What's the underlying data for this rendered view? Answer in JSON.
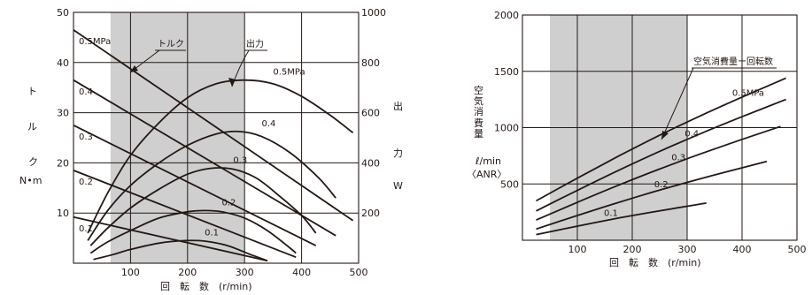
{
  "chart_data": [
    {
      "type": "line",
      "title": "",
      "xlabel": "回　転　数　(r/min)",
      "x_ticks": [
        100,
        200,
        300,
        400,
        500
      ],
      "xlim": [
        0,
        500
      ],
      "shaded_x_range": [
        65,
        300
      ],
      "left_axis": {
        "label_chars": [
          "ト",
          "ル",
          "ク"
        ],
        "unit": "N•m",
        "ylim": [
          0,
          50
        ],
        "ticks": [
          10,
          20,
          30,
          40,
          50
        ]
      },
      "right_axis": {
        "label_chars": [
          "出",
          "力"
        ],
        "unit": "W",
        "ylim": [
          0,
          1000
        ],
        "ticks": [
          200,
          400,
          600,
          800,
          1000
        ]
      },
      "torque_series": [
        {
          "name": "0.5MPa",
          "x": [
            0,
            490
          ],
          "y": [
            46.5,
            8.5
          ]
        },
        {
          "name": "0.4",
          "x": [
            0,
            460
          ],
          "y": [
            36.5,
            5.5
          ]
        },
        {
          "name": "0.3",
          "x": [
            0,
            425
          ],
          "y": [
            27.5,
            3.5
          ]
        },
        {
          "name": "0.2",
          "x": [
            0,
            390
          ],
          "y": [
            18.5,
            1.2
          ]
        },
        {
          "name": "0.1",
          "x": [
            0,
            340
          ],
          "y": [
            9.2,
            0.5
          ]
        }
      ],
      "output_series": [
        {
          "name": "0.5MPa",
          "x": [
            25,
            60,
            100,
            150,
            200,
            250,
            300,
            350,
            400,
            450,
            490
          ],
          "y": [
            120,
            280,
            430,
            560,
            660,
            715,
            730,
            715,
            665,
            590,
            520
          ]
        },
        {
          "name": "0.4",
          "x": [
            25,
            60,
            100,
            150,
            200,
            250,
            290,
            330,
            380,
            430,
            460
          ],
          "y": [
            90,
            210,
            310,
            400,
            470,
            515,
            525,
            505,
            440,
            340,
            260
          ]
        },
        {
          "name": "0.3",
          "x": [
            30,
            60,
            100,
            150,
            200,
            240,
            280,
            320,
            360,
            400,
            425
          ],
          "y": [
            70,
            140,
            220,
            295,
            355,
            378,
            375,
            340,
            270,
            190,
            120
          ]
        },
        {
          "name": "0.2",
          "x": [
            30,
            60,
            100,
            150,
            200,
            230,
            260,
            300,
            340,
            380,
            390
          ],
          "y": [
            40,
            85,
            130,
            180,
            205,
            210,
            205,
            180,
            130,
            60,
            40
          ]
        },
        {
          "name": "0.1",
          "x": [
            35,
            70,
            100,
            150,
            195,
            230,
            270,
            310,
            340
          ],
          "y": [
            15,
            35,
            55,
            80,
            90,
            88,
            70,
            35,
            10
          ]
        }
      ],
      "annotations": {
        "torque": "トルク",
        "output": "出力"
      }
    },
    {
      "type": "line",
      "title": "",
      "xlabel": "回　転　数　(r/min)",
      "x_ticks": [
        100,
        200,
        300,
        400,
        500
      ],
      "xlim": [
        0,
        500
      ],
      "shaded_x_range": [
        50,
        300
      ],
      "ylabel_chars": [
        "空",
        "気",
        "消",
        "費",
        "量"
      ],
      "y_unit_lines": [
        "ℓ/min",
        "〈ANR〉"
      ],
      "ylim": [
        0,
        2000
      ],
      "y_ticks": [
        500,
        1000,
        1500,
        2000
      ],
      "series": [
        {
          "name": "0.5MPa",
          "x": [
            25,
            480
          ],
          "y": [
            350,
            1440
          ]
        },
        {
          "name": "0.4",
          "x": [
            25,
            480
          ],
          "y": [
            260,
            1250
          ]
        },
        {
          "name": "0.3",
          "x": [
            25,
            470
          ],
          "y": [
            180,
            1010
          ]
        },
        {
          "name": "0.2",
          "x": [
            25,
            445
          ],
          "y": [
            100,
            700
          ]
        },
        {
          "name": "0.1",
          "x": [
            25,
            335
          ],
          "y": [
            50,
            330
          ]
        }
      ],
      "annotation": "空気消費量ー回転数"
    }
  ]
}
